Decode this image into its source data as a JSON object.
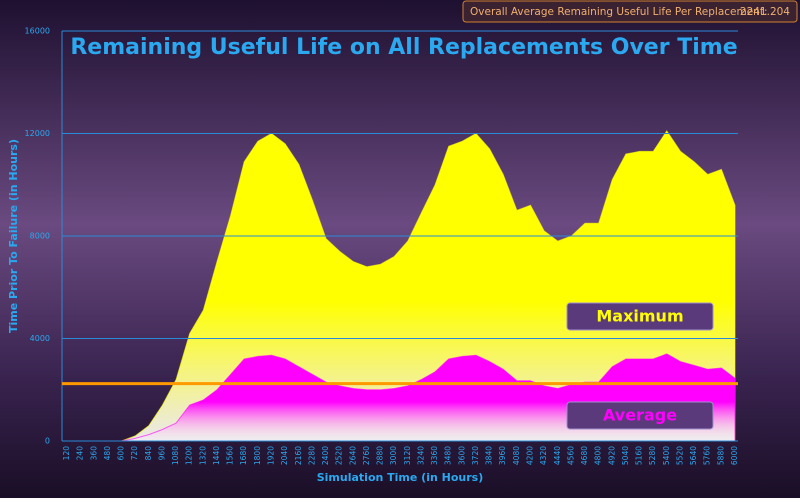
{
  "chart_data": {
    "type": "area",
    "title": "Remaining Useful Life on All Replacements Over Time",
    "xlabel": "Simulation Time (in Hours)",
    "ylabel": "Time Prior To Failure (in Hours)",
    "x": [
      120,
      240,
      360,
      480,
      600,
      720,
      840,
      960,
      1080,
      1200,
      1320,
      1440,
      1560,
      1680,
      1800,
      1920,
      2040,
      2160,
      2280,
      2400,
      2520,
      2640,
      2760,
      2880,
      3000,
      3120,
      3240,
      3360,
      3480,
      3600,
      3720,
      3840,
      3960,
      4080,
      4200,
      4320,
      4440,
      4560,
      4680,
      4800,
      4920,
      5040,
      5160,
      5280,
      5400,
      5520,
      5640,
      5760,
      5880,
      6000
    ],
    "xlim": [
      120,
      6000
    ],
    "ylim": [
      0,
      16000
    ],
    "yticks": [
      0,
      4000,
      8000,
      12000,
      16000
    ],
    "grid": true,
    "series": [
      {
        "name": "Maximum",
        "color": "#ffff00",
        "values": [
          0,
          0,
          0,
          0,
          0,
          200,
          600,
          1400,
          2400,
          4200,
          5100,
          7000,
          8800,
          10900,
          11700,
          12000,
          11600,
          10800,
          9400,
          7900,
          7400,
          7000,
          6800,
          6900,
          7200,
          7800,
          8900,
          10000,
          11500,
          11700,
          12000,
          11400,
          10400,
          9000,
          9200,
          8200,
          7800,
          8000,
          8500,
          8500,
          10200,
          11200,
          11300,
          11300,
          12100,
          11300,
          10900,
          10400,
          10600,
          9200
        ]
      },
      {
        "name": "Average",
        "color": "#ff00ff",
        "values": [
          0,
          0,
          0,
          0,
          0,
          100,
          250,
          450,
          700,
          1400,
          1600,
          2000,
          2600,
          3200,
          3300,
          3350,
          3200,
          2900,
          2600,
          2300,
          2150,
          2050,
          2000,
          2000,
          2050,
          2150,
          2400,
          2700,
          3200,
          3300,
          3350,
          3100,
          2800,
          2350,
          2350,
          2150,
          2050,
          2200,
          2300,
          2300,
          2900,
          3200,
          3200,
          3200,
          3400,
          3100,
          2950,
          2800,
          2850,
          2450
        ]
      }
    ],
    "overall_average": {
      "label": "Overall Average Remaining Useful Life Per Replacement:",
      "value": 2241.204,
      "color": "#ff9900"
    }
  }
}
